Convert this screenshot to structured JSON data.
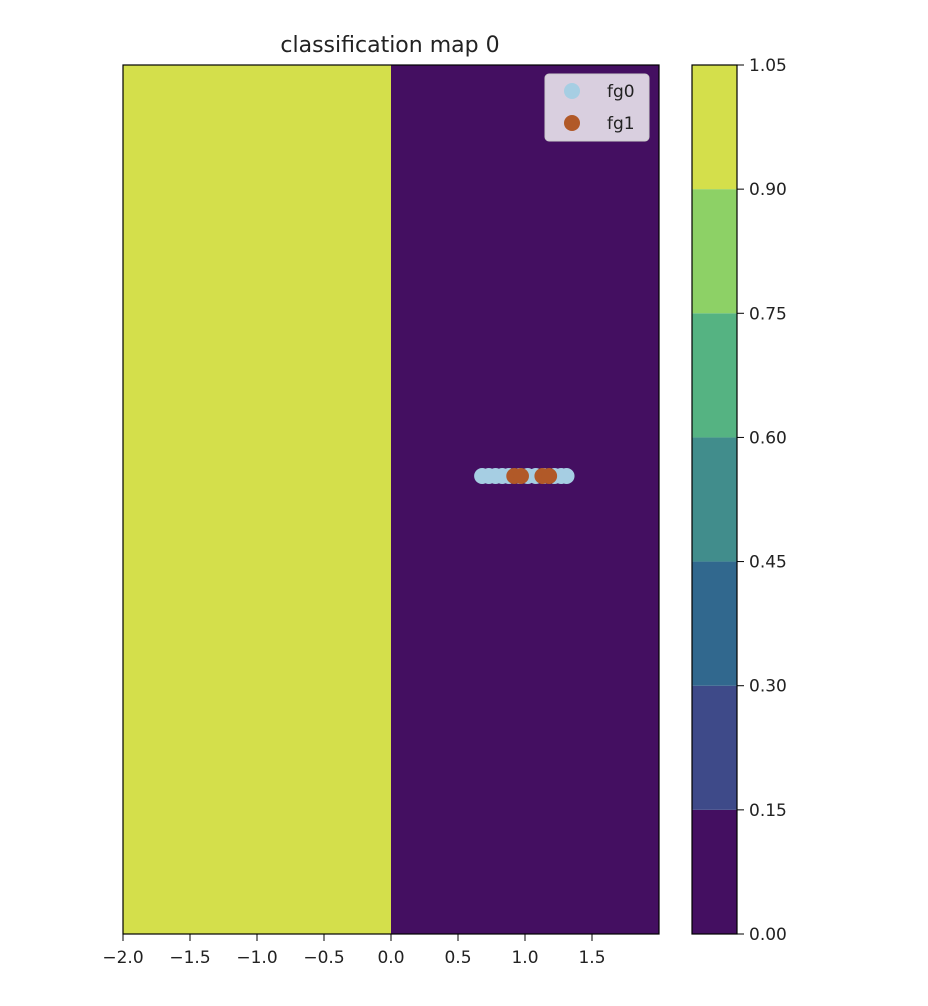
{
  "chart_data": {
    "type": "contour",
    "title": "classification map 0",
    "xlabel": "",
    "ylabel": "",
    "xlim": [
      -2.0,
      2.0
    ],
    "xticks": [
      -2.0,
      -1.5,
      -1.0,
      -0.5,
      0.0,
      0.5,
      1.0,
      1.5
    ],
    "xtick_labels": [
      "−2.0",
      "−1.5",
      "−1.0",
      "−0.5",
      "0.0",
      "0.5",
      "1.0",
      "1.5"
    ],
    "regions": [
      {
        "x_start": -2.0,
        "x_end": 0.0,
        "level": 1.0
      },
      {
        "x_start": 0.0,
        "x_end": 2.0,
        "level": 0.0
      }
    ],
    "colorbar": {
      "levels": [
        0.0,
        0.15,
        0.3,
        0.45,
        0.6,
        0.75,
        0.9,
        1.05
      ],
      "tick_labels": [
        "0.00",
        "0.15",
        "0.30",
        "0.45",
        "0.60",
        "0.75",
        "0.90",
        "1.05"
      ],
      "colors": [
        "#440f61",
        "#3e4a89",
        "#31688e",
        "#418d8c",
        "#55b382",
        "#8dd166",
        "#d4df4b"
      ]
    },
    "series": [
      {
        "name": "fg0",
        "color": "#a6cee3",
        "x": [
          0.68,
          0.73,
          0.78,
          0.83,
          0.88,
          0.96,
          1.02,
          1.08,
          1.14,
          1.22,
          1.27,
          1.31
        ],
        "y": [
          0,
          0,
          0,
          0,
          0,
          0,
          0,
          0,
          0,
          0,
          0,
          0
        ]
      },
      {
        "name": "fg1",
        "color": "#b15928",
        "x": [
          0.92,
          0.97,
          1.13,
          1.18
        ],
        "y": [
          0,
          0,
          0,
          0
        ]
      }
    ],
    "legend_position": "top-right",
    "grid": false
  }
}
